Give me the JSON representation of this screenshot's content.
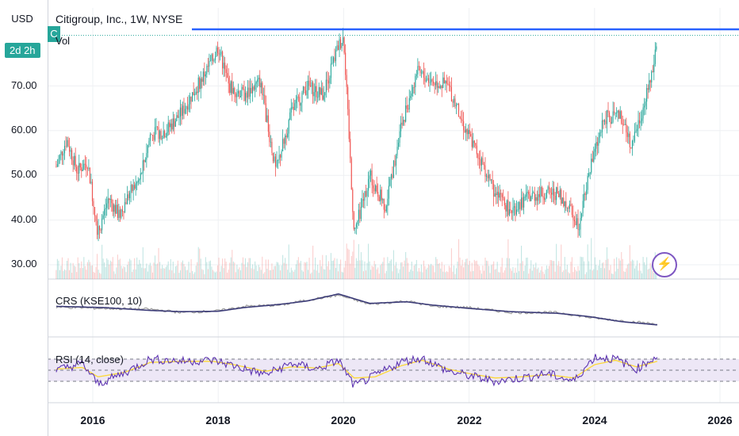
{
  "header": {
    "currency": "USD",
    "timer": "2d 2h",
    "symbol_badge": "C",
    "title": "Citigroup, Inc., 1W, NYSE",
    "volume_label": "Vol"
  },
  "panes": {
    "crs_label": "CRS (KSE100, 10)",
    "rsi_label": "RSI (14, close)"
  },
  "colors": {
    "up": "#26a69a",
    "down": "#ef5350",
    "price_line": "#2962ff",
    "crs_main": "#3c3c78",
    "crs_ref": "#9e9e9e",
    "rsi_line": "#5e35b1",
    "rsi_ma": "#fdd835",
    "rsi_band": "#ede7f6",
    "icon": "#7e57c2"
  },
  "icons": [
    "lightning-icon"
  ],
  "chart_data": [
    {
      "type": "candlestick",
      "title": "Citigroup, Inc., 1W, NYSE",
      "ylabel": "USD",
      "ylim": [
        27.5,
        82.5
      ],
      "yticks": [
        "30.00",
        "40.00",
        "50.00",
        "60.00",
        "70.00"
      ],
      "xticks": [
        "2016",
        "2018",
        "2020",
        "2022",
        "2024",
        "2026"
      ],
      "x_range": [
        "2015-05",
        "2026-06"
      ],
      "last_price_line": 81.3,
      "series": [
        {
          "name": "Price",
          "points": [
            {
              "x": "2015-06",
              "y": 52
            },
            {
              "x": "2015-08",
              "y": 58
            },
            {
              "x": "2015-10",
              "y": 51
            },
            {
              "x": "2015-12",
              "y": 53
            },
            {
              "x": "2016-02",
              "y": 37
            },
            {
              "x": "2016-04",
              "y": 45
            },
            {
              "x": "2016-06",
              "y": 41
            },
            {
              "x": "2016-08",
              "y": 46
            },
            {
              "x": "2016-10",
              "y": 49
            },
            {
              "x": "2016-12",
              "y": 59
            },
            {
              "x": "2017-03",
              "y": 60
            },
            {
              "x": "2017-06",
              "y": 64
            },
            {
              "x": "2017-09",
              "y": 70
            },
            {
              "x": "2017-12",
              "y": 76
            },
            {
              "x": "2018-01",
              "y": 79
            },
            {
              "x": "2018-03",
              "y": 70
            },
            {
              "x": "2018-06",
              "y": 68
            },
            {
              "x": "2018-09",
              "y": 71
            },
            {
              "x": "2018-12",
              "y": 51
            },
            {
              "x": "2019-03",
              "y": 64
            },
            {
              "x": "2019-06",
              "y": 70
            },
            {
              "x": "2019-09",
              "y": 68
            },
            {
              "x": "2019-12",
              "y": 79
            },
            {
              "x": "2020-01",
              "y": 81
            },
            {
              "x": "2020-03",
              "y": 37
            },
            {
              "x": "2020-06",
              "y": 50
            },
            {
              "x": "2020-09",
              "y": 43
            },
            {
              "x": "2020-12",
              "y": 61
            },
            {
              "x": "2021-03",
              "y": 73
            },
            {
              "x": "2021-06",
              "y": 71
            },
            {
              "x": "2021-09",
              "y": 70
            },
            {
              "x": "2021-12",
              "y": 61
            },
            {
              "x": "2022-03",
              "y": 54
            },
            {
              "x": "2022-06",
              "y": 46
            },
            {
              "x": "2022-09",
              "y": 42
            },
            {
              "x": "2022-12",
              "y": 45
            },
            {
              "x": "2023-03",
              "y": 46
            },
            {
              "x": "2023-06",
              "y": 46
            },
            {
              "x": "2023-09",
              "y": 41
            },
            {
              "x": "2023-10",
              "y": 39
            },
            {
              "x": "2023-12",
              "y": 51
            },
            {
              "x": "2024-03",
              "y": 63
            },
            {
              "x": "2024-06",
              "y": 63
            },
            {
              "x": "2024-08",
              "y": 57
            },
            {
              "x": "2024-10",
              "y": 64
            },
            {
              "x": "2024-12",
              "y": 72
            },
            {
              "x": "2025-01",
              "y": 81
            }
          ]
        },
        {
          "name": "Vol",
          "note": "volume bars along bottom of price pane"
        }
      ]
    },
    {
      "type": "line",
      "title": "CRS (KSE100, 10)",
      "series": [
        {
          "name": "CRS",
          "values": [
            0.55,
            0.52,
            0.45,
            0.42,
            0.43,
            0.52,
            0.6,
            0.68,
            0.85,
            0.62,
            0.66,
            0.58,
            0.5,
            0.42,
            0.38,
            0.3,
            0.18,
            0.1
          ]
        },
        {
          "name": "CRS-ref",
          "values": [
            0.53,
            0.5,
            0.48,
            0.4,
            0.44,
            0.55,
            0.58,
            0.7,
            0.82,
            0.6,
            0.68,
            0.55,
            0.52,
            0.4,
            0.4,
            0.28,
            0.2,
            0.12
          ]
        }
      ],
      "x": [
        "2015-06",
        "2016-03",
        "2016-12",
        "2017-06",
        "2018-01",
        "2018-06",
        "2019-01",
        "2019-06",
        "2019-12",
        "2020-06",
        "2021-01",
        "2021-06",
        "2022-01",
        "2022-09",
        "2023-06",
        "2023-12",
        "2024-06",
        "2025-01"
      ]
    },
    {
      "type": "line",
      "title": "RSI (14, close)",
      "ylim": [
        0,
        100
      ],
      "bands": [
        30,
        70
      ],
      "x": [
        "2015-06",
        "2015-11",
        "2016-02",
        "2016-07",
        "2016-12",
        "2017-06",
        "2017-12",
        "2018-04",
        "2018-10",
        "2019-03",
        "2019-08",
        "2019-12",
        "2020-03",
        "2020-07",
        "2020-12",
        "2021-04",
        "2021-09",
        "2022-01",
        "2022-06",
        "2022-11",
        "2023-04",
        "2023-09",
        "2024-01",
        "2024-05",
        "2024-09",
        "2025-01"
      ],
      "series": [
        {
          "name": "RSI",
          "values": [
            50,
            62,
            25,
            45,
            70,
            66,
            68,
            58,
            42,
            62,
            52,
            68,
            22,
            40,
            65,
            72,
            48,
            40,
            30,
            36,
            44,
            30,
            74,
            70,
            52,
            76
          ]
        },
        {
          "name": "RSI-MA",
          "values": [
            52,
            55,
            38,
            46,
            64,
            66,
            66,
            60,
            48,
            56,
            54,
            62,
            36,
            38,
            58,
            68,
            52,
            44,
            36,
            38,
            42,
            36,
            60,
            68,
            56,
            66
          ]
        }
      ]
    }
  ]
}
